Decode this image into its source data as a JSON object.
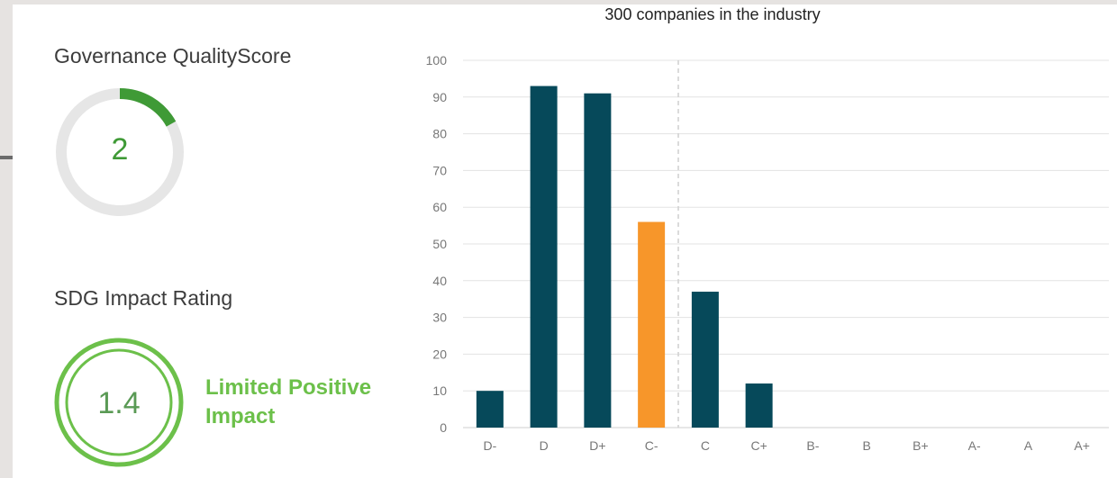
{
  "governance": {
    "title": "Governance QualityScore",
    "value": "2",
    "progress_fraction": 0.17,
    "accent_color": "#3f9a36",
    "track_color": "#e6e6e6"
  },
  "sdg": {
    "title": "SDG Impact Rating",
    "value": "1.4",
    "label": "Limited Positive Impact",
    "accent_color": "#6cc04a"
  },
  "chart_data": {
    "type": "bar",
    "title": "300 companies in the industry",
    "categories": [
      "D-",
      "D",
      "D+",
      "C-",
      "C",
      "C+",
      "B-",
      "B",
      "B+",
      "A-",
      "A",
      "A+"
    ],
    "values": [
      10,
      93,
      91,
      56,
      37,
      12,
      0,
      0,
      0,
      0,
      0,
      0
    ],
    "highlight_category": "C-",
    "bar_color": "#06495a",
    "highlight_color": "#f7962a",
    "ylim": [
      0,
      100
    ],
    "yticks": [
      0,
      10,
      20,
      30,
      40,
      50,
      60,
      70,
      80,
      90,
      100
    ],
    "grid": true,
    "reference_line_between": [
      "C-",
      "C"
    ]
  }
}
